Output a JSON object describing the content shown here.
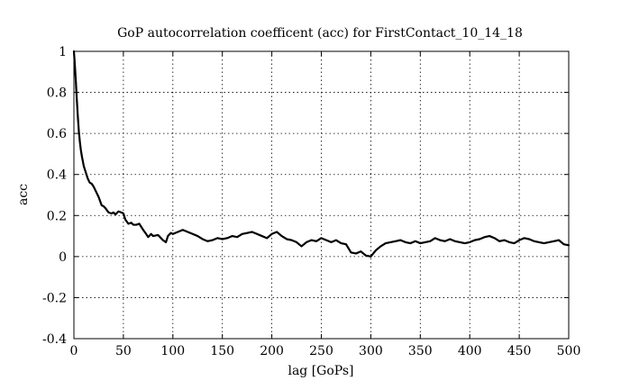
{
  "chart_data": {
    "type": "line",
    "title": "GoP autocorrelation coefficent (acc) for FirstContact_10_14_18",
    "xlabel": "lag [GoPs]",
    "ylabel": "acc",
    "xlim": [
      0,
      500
    ],
    "ylim": [
      -0.4,
      1
    ],
    "xticks": [
      0,
      50,
      100,
      150,
      200,
      250,
      300,
      350,
      400,
      450,
      500
    ],
    "yticks": [
      -0.4,
      -0.2,
      0,
      0.2,
      0.4,
      0.6,
      0.8,
      1
    ],
    "xtick_labels": [
      "0",
      "50",
      "100",
      "150",
      "200",
      "250",
      "300",
      "350",
      "400",
      "450",
      "500"
    ],
    "ytick_labels": [
      "-0.4",
      "-0.2",
      "0",
      "0.2",
      "0.4",
      "0.6",
      "0.8",
      "1"
    ],
    "grid": true,
    "line_color": "#000000",
    "series": [
      {
        "x": [
          0,
          1,
          2,
          3,
          4,
          5,
          6,
          7,
          8,
          10,
          12,
          14,
          16,
          18,
          20,
          22,
          25,
          28,
          30,
          32,
          35,
          38,
          40,
          42,
          45,
          48,
          50,
          52,
          55,
          58,
          60,
          63,
          66,
          70,
          73,
          75,
          78,
          80,
          85,
          90,
          93,
          95,
          98,
          100,
          105,
          110,
          115,
          120,
          125,
          130,
          135,
          140,
          145,
          150,
          155,
          160,
          165,
          170,
          175,
          180,
          185,
          190,
          195,
          200,
          205,
          210,
          215,
          220,
          225,
          230,
          235,
          240,
          245,
          250,
          255,
          260,
          265,
          270,
          275,
          280,
          285,
          290,
          295,
          300,
          305,
          310,
          315,
          320,
          325,
          330,
          335,
          340,
          345,
          350,
          355,
          360,
          365,
          370,
          375,
          380,
          385,
          390,
          395,
          400,
          405,
          410,
          415,
          420,
          425,
          430,
          435,
          440,
          445,
          450,
          455,
          460,
          465,
          470,
          475,
          480,
          485,
          490,
          495,
          500
        ],
        "y": [
          1.0,
          0.93,
          0.85,
          0.76,
          0.68,
          0.61,
          0.56,
          0.52,
          0.49,
          0.44,
          0.41,
          0.38,
          0.36,
          0.355,
          0.34,
          0.32,
          0.29,
          0.25,
          0.245,
          0.235,
          0.215,
          0.21,
          0.215,
          0.205,
          0.22,
          0.215,
          0.21,
          0.18,
          0.16,
          0.165,
          0.155,
          0.155,
          0.16,
          0.13,
          0.11,
          0.095,
          0.11,
          0.1,
          0.105,
          0.08,
          0.07,
          0.1,
          0.115,
          0.11,
          0.12,
          0.13,
          0.12,
          0.11,
          0.1,
          0.085,
          0.075,
          0.08,
          0.09,
          0.085,
          0.09,
          0.1,
          0.095,
          0.11,
          0.115,
          0.12,
          0.11,
          0.1,
          0.09,
          0.11,
          0.12,
          0.1,
          0.085,
          0.08,
          0.07,
          0.05,
          0.07,
          0.08,
          0.075,
          0.09,
          0.08,
          0.07,
          0.08,
          0.065,
          0.06,
          0.02,
          0.015,
          0.025,
          0.005,
          0.0,
          0.03,
          0.05,
          0.065,
          0.07,
          0.075,
          0.08,
          0.07,
          0.065,
          0.075,
          0.065,
          0.07,
          0.075,
          0.09,
          0.08,
          0.075,
          0.085,
          0.075,
          0.07,
          0.065,
          0.07,
          0.08,
          0.085,
          0.095,
          0.1,
          0.09,
          0.075,
          0.08,
          0.07,
          0.065,
          0.08,
          0.09,
          0.085,
          0.075,
          0.07,
          0.065,
          0.07,
          0.075,
          0.08,
          0.06,
          0.055
        ]
      }
    ]
  }
}
